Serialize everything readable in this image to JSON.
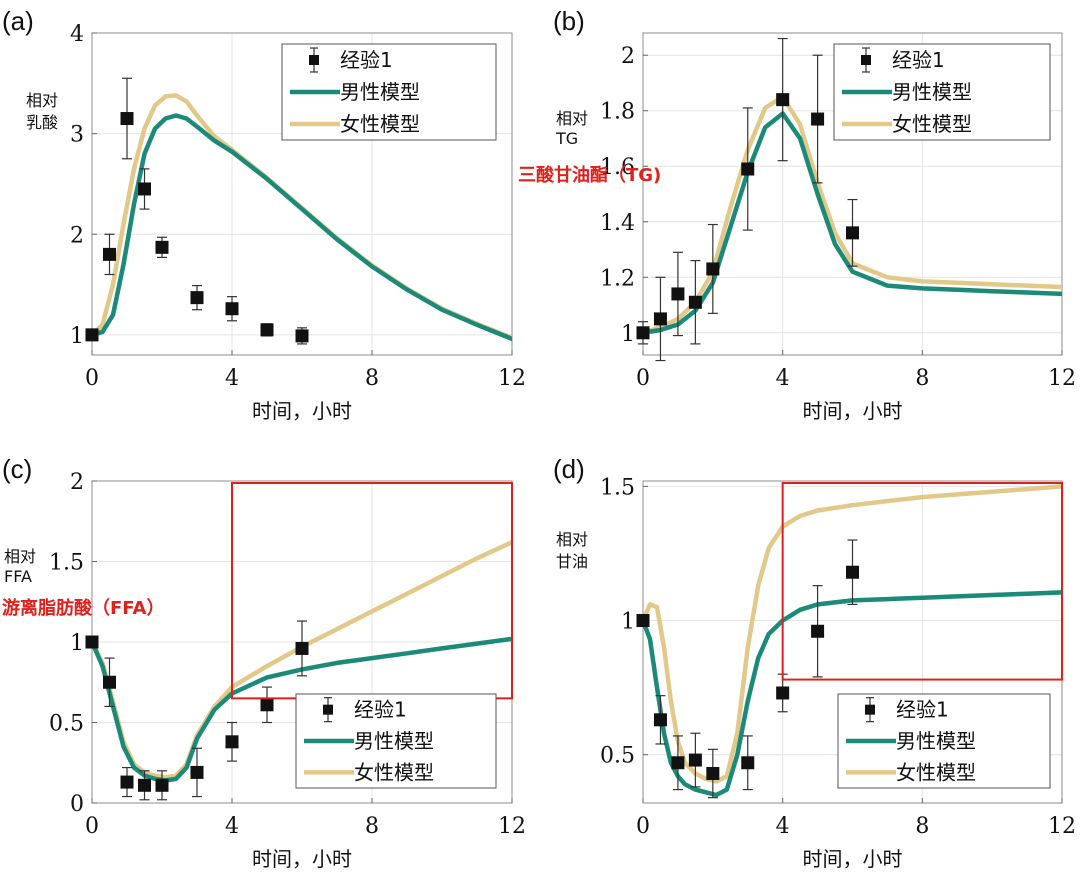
{
  "colors": {
    "male": "#1b8a78",
    "female": "#e2c98a",
    "data": "#111111",
    "highlight": "#e0211b",
    "grid": "#e4e4e4"
  },
  "chart_data": [
    {
      "panel_label": "(a)",
      "type": "line",
      "xlabel": "时间，小时",
      "ylabel": [
        "相对",
        "乳酸"
      ],
      "xlim": [
        0,
        12
      ],
      "ylim": [
        0.8,
        4.0
      ],
      "xticks": [
        0,
        4,
        8,
        12
      ],
      "xtick_labels": [
        "0",
        "4",
        "8",
        "12"
      ],
      "yticks": [
        1,
        2,
        3,
        4
      ],
      "ytick_labels": [
        "1",
        "2",
        "3",
        "4"
      ],
      "grid": true,
      "legend_placement": "top-right",
      "legend": [
        "经验1",
        "男性模型",
        "女性模型"
      ],
      "series": [
        {
          "name": "经验1",
          "kind": "scatter",
          "x": [
            0,
            0.5,
            1,
            1.5,
            2,
            3,
            4,
            5,
            6
          ],
          "y": [
            1.0,
            1.8,
            3.15,
            2.45,
            1.87,
            1.37,
            1.26,
            1.05,
            0.99
          ],
          "err": [
            0.05,
            0.2,
            0.4,
            0.2,
            0.1,
            0.12,
            0.12,
            0.06,
            0.08
          ]
        },
        {
          "name": "男性模型",
          "kind": "line",
          "x": [
            0,
            0.3,
            0.6,
            0.9,
            1.2,
            1.5,
            1.8,
            2.1,
            2.4,
            2.7,
            3.0,
            3.5,
            4,
            5,
            6,
            7,
            8,
            9,
            10,
            11,
            12
          ],
          "y": [
            1.0,
            1.03,
            1.2,
            1.7,
            2.3,
            2.8,
            3.05,
            3.15,
            3.18,
            3.15,
            3.07,
            2.93,
            2.82,
            2.55,
            2.25,
            1.95,
            1.68,
            1.45,
            1.25,
            1.1,
            0.96
          ]
        },
        {
          "name": "女性模型",
          "kind": "line",
          "x": [
            0,
            0.3,
            0.6,
            0.9,
            1.2,
            1.5,
            1.8,
            2.1,
            2.4,
            2.7,
            3.0,
            3.5,
            4,
            5,
            6,
            7,
            8,
            9,
            10,
            11,
            12
          ],
          "y": [
            1.0,
            1.1,
            1.5,
            2.1,
            2.65,
            3.05,
            3.28,
            3.37,
            3.38,
            3.32,
            3.18,
            2.97,
            2.84,
            2.56,
            2.26,
            1.96,
            1.69,
            1.46,
            1.26,
            1.11,
            0.97
          ]
        }
      ]
    },
    {
      "panel_label": "(b)",
      "type": "line",
      "xlabel": "时间，小时",
      "ylabel": [
        "相对",
        "TG"
      ],
      "annotation": "三酸甘油酯（TG)",
      "xlim": [
        0,
        12
      ],
      "ylim": [
        0.92,
        2.08
      ],
      "xticks": [
        0,
        4,
        8,
        12
      ],
      "xtick_labels": [
        "0",
        "4",
        "8",
        "12"
      ],
      "yticks": [
        1,
        1.2,
        1.4,
        1.6,
        1.8,
        2
      ],
      "ytick_labels": [
        "1",
        "1.2",
        "1.4",
        "1.6",
        "1.8",
        "2"
      ],
      "grid": true,
      "legend_placement": "top-right",
      "legend": [
        "经验1",
        "男性模型",
        "女性模型"
      ],
      "series": [
        {
          "name": "经验1",
          "kind": "scatter",
          "x": [
            0,
            0.5,
            1,
            1.5,
            2,
            3,
            4,
            5,
            6
          ],
          "y": [
            1.0,
            1.05,
            1.14,
            1.11,
            1.23,
            1.59,
            1.84,
            1.77,
            1.36
          ],
          "err": [
            0.04,
            0.15,
            0.15,
            0.15,
            0.16,
            0.22,
            0.22,
            0.23,
            0.12
          ]
        },
        {
          "name": "男性模型",
          "kind": "line",
          "x": [
            0,
            0.5,
            1,
            1.5,
            2,
            2.5,
            3,
            3.5,
            4,
            4.5,
            5,
            5.5,
            6,
            7,
            8,
            9,
            10,
            11,
            12
          ],
          "y": [
            1.0,
            1.01,
            1.03,
            1.08,
            1.18,
            1.38,
            1.58,
            1.74,
            1.79,
            1.7,
            1.5,
            1.32,
            1.22,
            1.17,
            1.16,
            1.155,
            1.15,
            1.145,
            1.14
          ]
        },
        {
          "name": "女性模型",
          "kind": "line",
          "x": [
            0,
            0.5,
            1,
            1.5,
            2,
            2.5,
            3,
            3.5,
            4,
            4.5,
            5,
            5.5,
            6,
            7,
            8,
            9,
            10,
            11,
            12
          ],
          "y": [
            1.0,
            1.02,
            1.05,
            1.11,
            1.22,
            1.45,
            1.66,
            1.81,
            1.85,
            1.75,
            1.54,
            1.36,
            1.25,
            1.2,
            1.185,
            1.18,
            1.175,
            1.17,
            1.165
          ]
        }
      ]
    },
    {
      "panel_label": "(c)",
      "type": "line",
      "xlabel": "时间，小时",
      "ylabel": [
        "相对",
        "FFA"
      ],
      "annotation": "游离脂肪酸（FFA）",
      "xlim": [
        0,
        12
      ],
      "ylim": [
        0,
        2
      ],
      "xticks": [
        0,
        4,
        8,
        12
      ],
      "xtick_labels": [
        "0",
        "4",
        "8",
        "12"
      ],
      "yticks": [
        0,
        0.5,
        1,
        1.5,
        2
      ],
      "ytick_labels": [
        "0",
        "0.5",
        "1",
        "1.5",
        "2"
      ],
      "grid": true,
      "legend_placement": "bottom-right",
      "legend": [
        "经验1",
        "男性模型",
        "女性模型"
      ],
      "highlight_box": {
        "x": [
          4,
          12
        ],
        "y": [
          0.65,
          2.0
        ]
      },
      "series": [
        {
          "name": "经验1",
          "kind": "scatter",
          "x": [
            0,
            0.5,
            1,
            1.5,
            2,
            3,
            4,
            5,
            6
          ],
          "y": [
            1.0,
            0.75,
            0.13,
            0.11,
            0.11,
            0.19,
            0.38,
            0.61,
            0.96
          ],
          "err": [
            0.03,
            0.15,
            0.09,
            0.09,
            0.09,
            0.15,
            0.12,
            0.11,
            0.17
          ]
        },
        {
          "name": "男性模型",
          "kind": "line",
          "x": [
            0,
            0.3,
            0.6,
            0.9,
            1.2,
            1.5,
            1.8,
            2.1,
            2.4,
            2.7,
            3.0,
            3.5,
            4,
            5,
            6,
            7,
            8,
            9,
            10,
            11,
            12
          ],
          "y": [
            1.0,
            0.85,
            0.6,
            0.35,
            0.22,
            0.17,
            0.15,
            0.14,
            0.15,
            0.22,
            0.4,
            0.58,
            0.68,
            0.78,
            0.83,
            0.87,
            0.9,
            0.93,
            0.96,
            0.99,
            1.02
          ]
        },
        {
          "name": "女性模型",
          "kind": "line",
          "x": [
            0,
            0.3,
            0.6,
            0.9,
            1.2,
            1.5,
            1.8,
            2.1,
            2.4,
            2.7,
            3.0,
            3.5,
            4,
            5,
            6,
            7,
            8,
            9,
            10,
            11,
            12
          ],
          "y": [
            1.0,
            0.87,
            0.63,
            0.38,
            0.24,
            0.19,
            0.17,
            0.16,
            0.17,
            0.24,
            0.42,
            0.6,
            0.72,
            0.85,
            0.97,
            1.08,
            1.19,
            1.3,
            1.41,
            1.52,
            1.62
          ]
        }
      ]
    },
    {
      "panel_label": "(d)",
      "type": "line",
      "xlabel": "时间，小时",
      "ylabel": [
        "相对",
        "甘油"
      ],
      "xlim": [
        0,
        12
      ],
      "ylim": [
        0.32,
        1.52
      ],
      "xticks": [
        0,
        4,
        8,
        12
      ],
      "xtick_labels": [
        "0",
        "4",
        "8",
        "12"
      ],
      "yticks": [
        0.5,
        1,
        1.5
      ],
      "ytick_labels": [
        "0.5",
        "1",
        "1.5"
      ],
      "grid": true,
      "legend_placement": "bottom-right",
      "legend": [
        "经验1",
        "男性模型",
        "女性模型"
      ],
      "highlight_box": {
        "x": [
          4,
          12
        ],
        "y": [
          0.78,
          1.52
        ]
      },
      "series": [
        {
          "name": "经验1",
          "kind": "scatter",
          "x": [
            0,
            0.5,
            1,
            1.5,
            2,
            3,
            4,
            5,
            6
          ],
          "y": [
            1.0,
            0.63,
            0.47,
            0.48,
            0.43,
            0.47,
            0.73,
            0.96,
            1.18
          ],
          "err": [
            0.02,
            0.09,
            0.1,
            0.1,
            0.09,
            0.1,
            0.07,
            0.17,
            0.12
          ]
        },
        {
          "name": "男性模型",
          "kind": "line",
          "x": [
            0,
            0.2,
            0.4,
            0.6,
            0.8,
            1.0,
            1.2,
            1.5,
            1.8,
            2.1,
            2.4,
            2.7,
            3.0,
            3.3,
            3.6,
            4,
            4.5,
            5,
            6,
            7,
            8,
            9,
            10,
            11,
            12
          ],
          "y": [
            1.0,
            0.93,
            0.75,
            0.58,
            0.47,
            0.42,
            0.39,
            0.37,
            0.36,
            0.35,
            0.37,
            0.5,
            0.7,
            0.86,
            0.95,
            1.0,
            1.04,
            1.06,
            1.075,
            1.08,
            1.085,
            1.09,
            1.095,
            1.1,
            1.105
          ]
        },
        {
          "name": "女性模型",
          "kind": "line",
          "x": [
            0,
            0.2,
            0.4,
            0.6,
            0.8,
            1.0,
            1.2,
            1.5,
            1.8,
            2.1,
            2.4,
            2.7,
            3.0,
            3.3,
            3.6,
            4,
            4.5,
            5,
            6,
            7,
            8,
            9,
            10,
            11,
            12
          ],
          "y": [
            1.0,
            1.06,
            1.05,
            0.9,
            0.7,
            0.55,
            0.47,
            0.43,
            0.41,
            0.4,
            0.42,
            0.58,
            0.9,
            1.13,
            1.27,
            1.35,
            1.39,
            1.41,
            1.43,
            1.445,
            1.46,
            1.47,
            1.48,
            1.49,
            1.5
          ]
        }
      ]
    }
  ]
}
